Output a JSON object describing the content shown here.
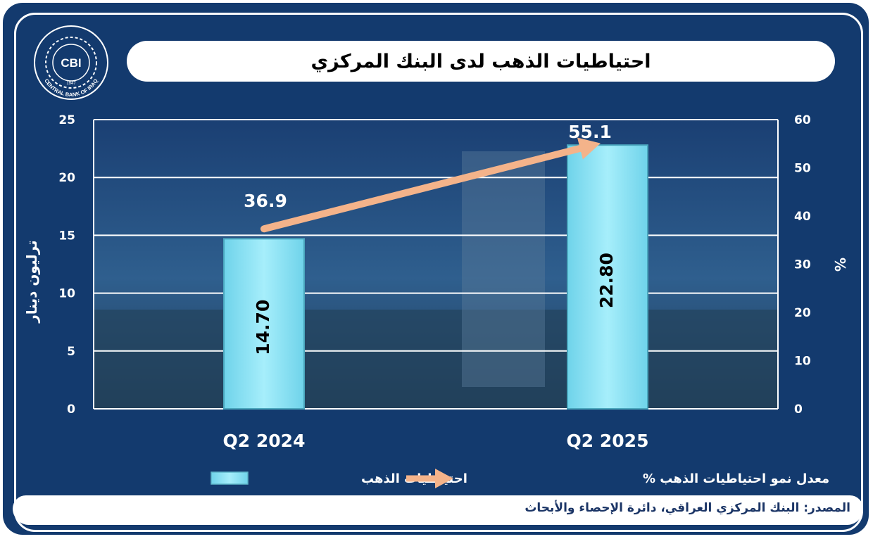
{
  "title": "احتياطيات الذهب لدى البنك المركزي",
  "logo": {
    "initials": "CBI",
    "name": "CENTRAL BANK OF IRAQ",
    "year": "1947"
  },
  "source": "المصدر: البنك المركزي العراقي، دائرة الإحصاء والأبحاث",
  "colors": {
    "background": "#133a6e",
    "bar": "#8ee6f7",
    "arrow": "#f4b38a"
  },
  "chart_data": {
    "type": "bar",
    "categories": [
      "Q2 2024",
      "Q2 2025"
    ],
    "series": [
      {
        "name": "احتياطيات الذهب",
        "type": "bar",
        "axis": "left",
        "values": [
          14.7,
          22.8
        ],
        "labels": [
          "14.70",
          "22.80"
        ]
      },
      {
        "name": "معدل نمو احتياطيات الذهب %",
        "type": "line",
        "axis": "right",
        "values": [
          36.9,
          55.1
        ],
        "labels": [
          "36.9",
          "55.1"
        ]
      }
    ],
    "ylabel": "ترليون دينار",
    "y2label": "%",
    "ylim": [
      0,
      25
    ],
    "y2lim": [
      0,
      60
    ],
    "yticks": [
      "0",
      "5",
      "10",
      "15",
      "20",
      "25"
    ],
    "y2ticks": [
      "0",
      "10",
      "20",
      "30",
      "40",
      "50",
      "60"
    ],
    "grid": true,
    "legend_position": "bottom"
  }
}
